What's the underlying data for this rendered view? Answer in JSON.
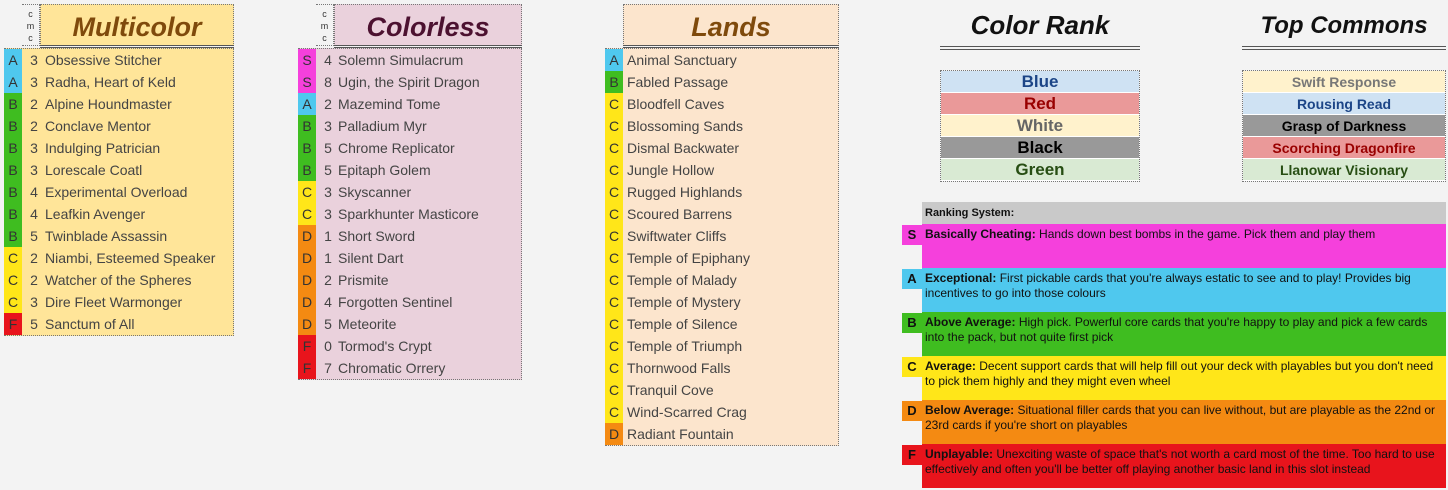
{
  "multicolor": {
    "title": "Multicolor",
    "cmc_label": "c m c",
    "cards": [
      {
        "grade": "A",
        "cmc": "3",
        "name": "Obsessive Stitcher"
      },
      {
        "grade": "A",
        "cmc": "3",
        "name": "Radha, Heart of Keld"
      },
      {
        "grade": "B",
        "cmc": "2",
        "name": "Alpine Houndmaster"
      },
      {
        "grade": "B",
        "cmc": "2",
        "name": "Conclave Mentor"
      },
      {
        "grade": "B",
        "cmc": "3",
        "name": "Indulging Patrician"
      },
      {
        "grade": "B",
        "cmc": "3",
        "name": "Lorescale Coatl"
      },
      {
        "grade": "B",
        "cmc": "4",
        "name": "Experimental Overload"
      },
      {
        "grade": "B",
        "cmc": "4",
        "name": "Leafkin Avenger"
      },
      {
        "grade": "B",
        "cmc": "5",
        "name": "Twinblade Assassin"
      },
      {
        "grade": "C",
        "cmc": "2",
        "name": "Niambi, Esteemed Speaker"
      },
      {
        "grade": "C",
        "cmc": "2",
        "name": "Watcher of the Spheres"
      },
      {
        "grade": "C",
        "cmc": "3",
        "name": "Dire Fleet Warmonger"
      },
      {
        "grade": "F",
        "cmc": "5",
        "name": "Sanctum of All"
      }
    ]
  },
  "colorless": {
    "title": "Colorless",
    "cmc_label": "c m c",
    "cards": [
      {
        "grade": "S",
        "cmc": "4",
        "name": "Solemn Simulacrum"
      },
      {
        "grade": "S",
        "cmc": "8",
        "name": "Ugin, the Spirit Dragon"
      },
      {
        "grade": "A",
        "cmc": "2",
        "name": "Mazemind Tome"
      },
      {
        "grade": "B",
        "cmc": "3",
        "name": "Palladium Myr"
      },
      {
        "grade": "B",
        "cmc": "5",
        "name": "Chrome Replicator"
      },
      {
        "grade": "B",
        "cmc": "5",
        "name": "Epitaph Golem"
      },
      {
        "grade": "C",
        "cmc": "3",
        "name": "Skyscanner"
      },
      {
        "grade": "C",
        "cmc": "3",
        "name": "Sparkhunter Masticore"
      },
      {
        "grade": "D",
        "cmc": "1",
        "name": "Short Sword"
      },
      {
        "grade": "D",
        "cmc": "1",
        "name": "Silent Dart"
      },
      {
        "grade": "D",
        "cmc": "2",
        "name": "Prismite"
      },
      {
        "grade": "D",
        "cmc": "4",
        "name": "Forgotten Sentinel"
      },
      {
        "grade": "D",
        "cmc": "5",
        "name": "Meteorite"
      },
      {
        "grade": "F",
        "cmc": "0",
        "name": "Tormod's Crypt"
      },
      {
        "grade": "F",
        "cmc": "7",
        "name": "Chromatic Orrery"
      }
    ]
  },
  "lands": {
    "title": "Lands",
    "cards": [
      {
        "grade": "A",
        "name": "Animal Sanctuary"
      },
      {
        "grade": "B",
        "name": "Fabled Passage"
      },
      {
        "grade": "C",
        "name": "Bloodfell Caves"
      },
      {
        "grade": "C",
        "name": "Blossoming Sands"
      },
      {
        "grade": "C",
        "name": "Dismal Backwater"
      },
      {
        "grade": "C",
        "name": "Jungle Hollow"
      },
      {
        "grade": "C",
        "name": "Rugged Highlands"
      },
      {
        "grade": "C",
        "name": "Scoured Barrens"
      },
      {
        "grade": "C",
        "name": "Swiftwater Cliffs"
      },
      {
        "grade": "C",
        "name": "Temple of Epiphany"
      },
      {
        "grade": "C",
        "name": "Temple of Malady"
      },
      {
        "grade": "C",
        "name": "Temple of Mystery"
      },
      {
        "grade": "C",
        "name": "Temple of Silence"
      },
      {
        "grade": "C",
        "name": "Temple of Triumph"
      },
      {
        "grade": "C",
        "name": "Thornwood Falls"
      },
      {
        "grade": "C",
        "name": "Tranquil Cove"
      },
      {
        "grade": "C",
        "name": "Wind-Scarred Crag"
      },
      {
        "grade": "D",
        "name": "Radiant Fountain"
      }
    ]
  },
  "color_rank": {
    "title": "Color Rank",
    "items": [
      {
        "label": "Blue",
        "bg": "#cfe2f3",
        "fg": "#1c4587"
      },
      {
        "label": "Red",
        "bg": "#ea9999",
        "fg": "#990000"
      },
      {
        "label": "White",
        "bg": "#fff2cc",
        "fg": "#666666"
      },
      {
        "label": "Black",
        "bg": "#999999",
        "fg": "#000000"
      },
      {
        "label": "Green",
        "bg": "#d9ead3",
        "fg": "#274e13"
      }
    ]
  },
  "top_commons": {
    "title": "Top Commons",
    "items": [
      {
        "label": "Swift Response",
        "bg": "#fff2cc",
        "fg": "#777777"
      },
      {
        "label": "Rousing Read",
        "bg": "#cfe2f3",
        "fg": "#1c4587"
      },
      {
        "label": "Grasp of Darkness",
        "bg": "#999999",
        "fg": "#000000"
      },
      {
        "label": "Scorching Dragonfire",
        "bg": "#ea9999",
        "fg": "#990000"
      },
      {
        "label": "Llanowar Visionary",
        "bg": "#d9ead3",
        "fg": "#274e13"
      }
    ]
  },
  "ranking_system": {
    "title": "Ranking System:",
    "items": [
      {
        "letter": "S",
        "heading": "Basically Cheating:",
        "text": " Hands down best bombs in the game. Pick them and play them"
      },
      {
        "letter": "A",
        "heading": "Exceptional:",
        "text": " First pickable cards that you're always estatic to see and to play! Provides big incentives to go into those colours"
      },
      {
        "letter": "B",
        "heading": "Above Average:",
        "text": "  High pick. Powerful core cards that you're happy to play and pick a few cards into the pack, but not quite first pick"
      },
      {
        "letter": "C",
        "heading": "Average:",
        "text": "  Decent support cards that will help fill out your deck with playables but you don't need to pick them highly and they might even wheel"
      },
      {
        "letter": "D",
        "heading": "Below Average:",
        "text": "  Situational filler cards that you can live without, but are playable as the 22nd or 23rd cards if you're short on playables"
      },
      {
        "letter": "F",
        "heading": "Unplayable:",
        "text": "  Unexciting waste of space that's not worth a card most of the time. Too hard to use effectively and often you'll be better off playing another basic land in this slot instead"
      }
    ]
  },
  "colors": {
    "multicolor_bg": "#ffe599",
    "multicolor_title": "#7f4a0c",
    "colorless_bg": "#ead1dc",
    "colorless_title": "#4c1130",
    "lands_bg": "#fce5cd",
    "lands_title": "#7f4a0c"
  }
}
